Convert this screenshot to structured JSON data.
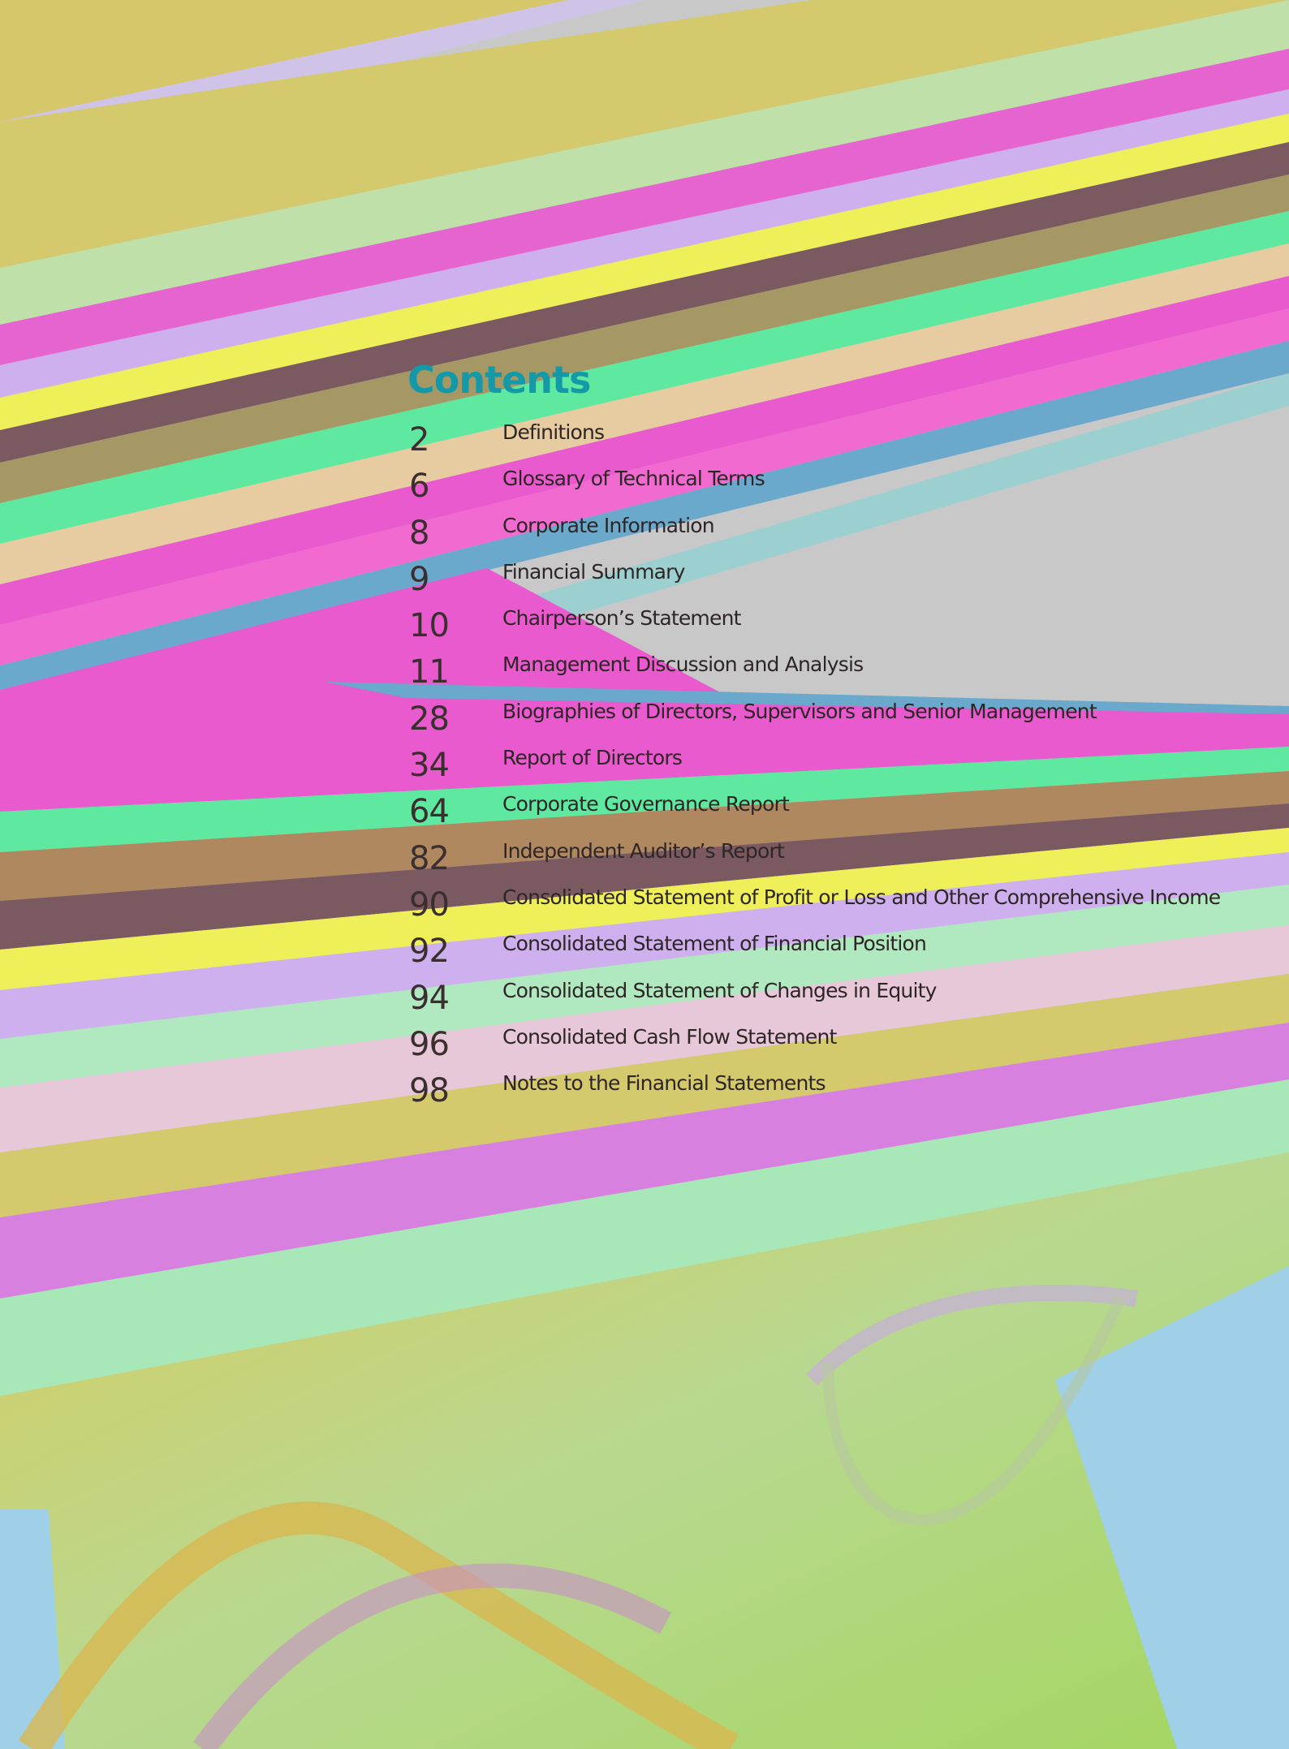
{
  "heading": "Contents",
  "toc": [
    {
      "page": "2",
      "title": "Definitions"
    },
    {
      "page": "6",
      "title": "Glossary of Technical Terms"
    },
    {
      "page": "8",
      "title": "Corporate Information"
    },
    {
      "page": "9",
      "title": "Financial Summary"
    },
    {
      "page": "10",
      "title": "Chairperson’s Statement"
    },
    {
      "page": "11",
      "title": "Management Discussion and Analysis"
    },
    {
      "page": "28",
      "title": "Biographies of Directors, Supervisors and Senior Management"
    },
    {
      "page": "34",
      "title": "Report of Directors"
    },
    {
      "page": "64",
      "title": "Corporate Governance Report"
    },
    {
      "page": "82",
      "title": "Independent Auditor’s Report"
    },
    {
      "page": "90",
      "title": "Consolidated Statement of Profit or Loss and Other Comprehensive Income"
    },
    {
      "page": "92",
      "title": "Consolidated Statement of Financial Position"
    },
    {
      "page": "94",
      "title": "Consolidated Statement of Changes in Equity"
    },
    {
      "page": "96",
      "title": "Consolidated Cash Flow Statement"
    },
    {
      "page": "98",
      "title": "Notes to the Financial Statements"
    }
  ],
  "colors": {
    "heading": "#1499a8",
    "text": "#2e2626",
    "background": "#c8c8c8"
  },
  "background_art": "diagonal-rainbow-stripes-with-dna-helix"
}
